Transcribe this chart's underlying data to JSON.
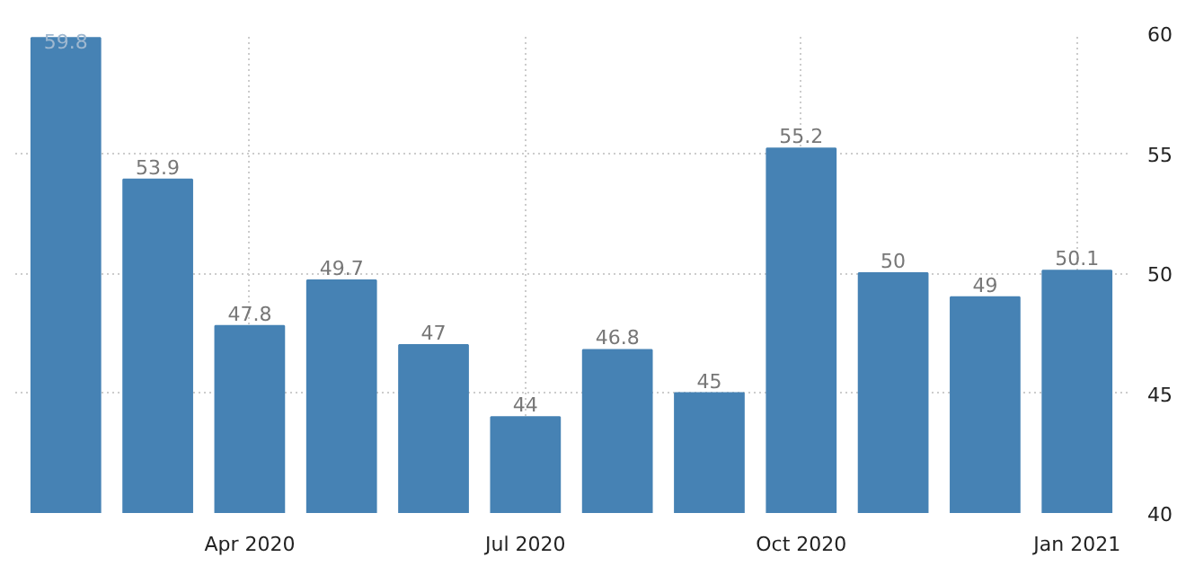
{
  "chart_data": {
    "type": "bar",
    "categories": [
      null,
      null,
      "Apr 2020",
      null,
      null,
      "Jul 2020",
      null,
      null,
      "Oct 2020",
      null,
      null,
      "Jan 2021"
    ],
    "values": [
      59.8,
      53.9,
      47.8,
      49.7,
      47,
      44,
      46.8,
      45,
      55.2,
      50,
      49,
      50.1
    ],
    "color": "#4682b4",
    "ylim": [
      40,
      60
    ],
    "yticks": [
      40,
      45,
      50,
      55,
      60
    ],
    "grid": true,
    "data_labels": true
  }
}
